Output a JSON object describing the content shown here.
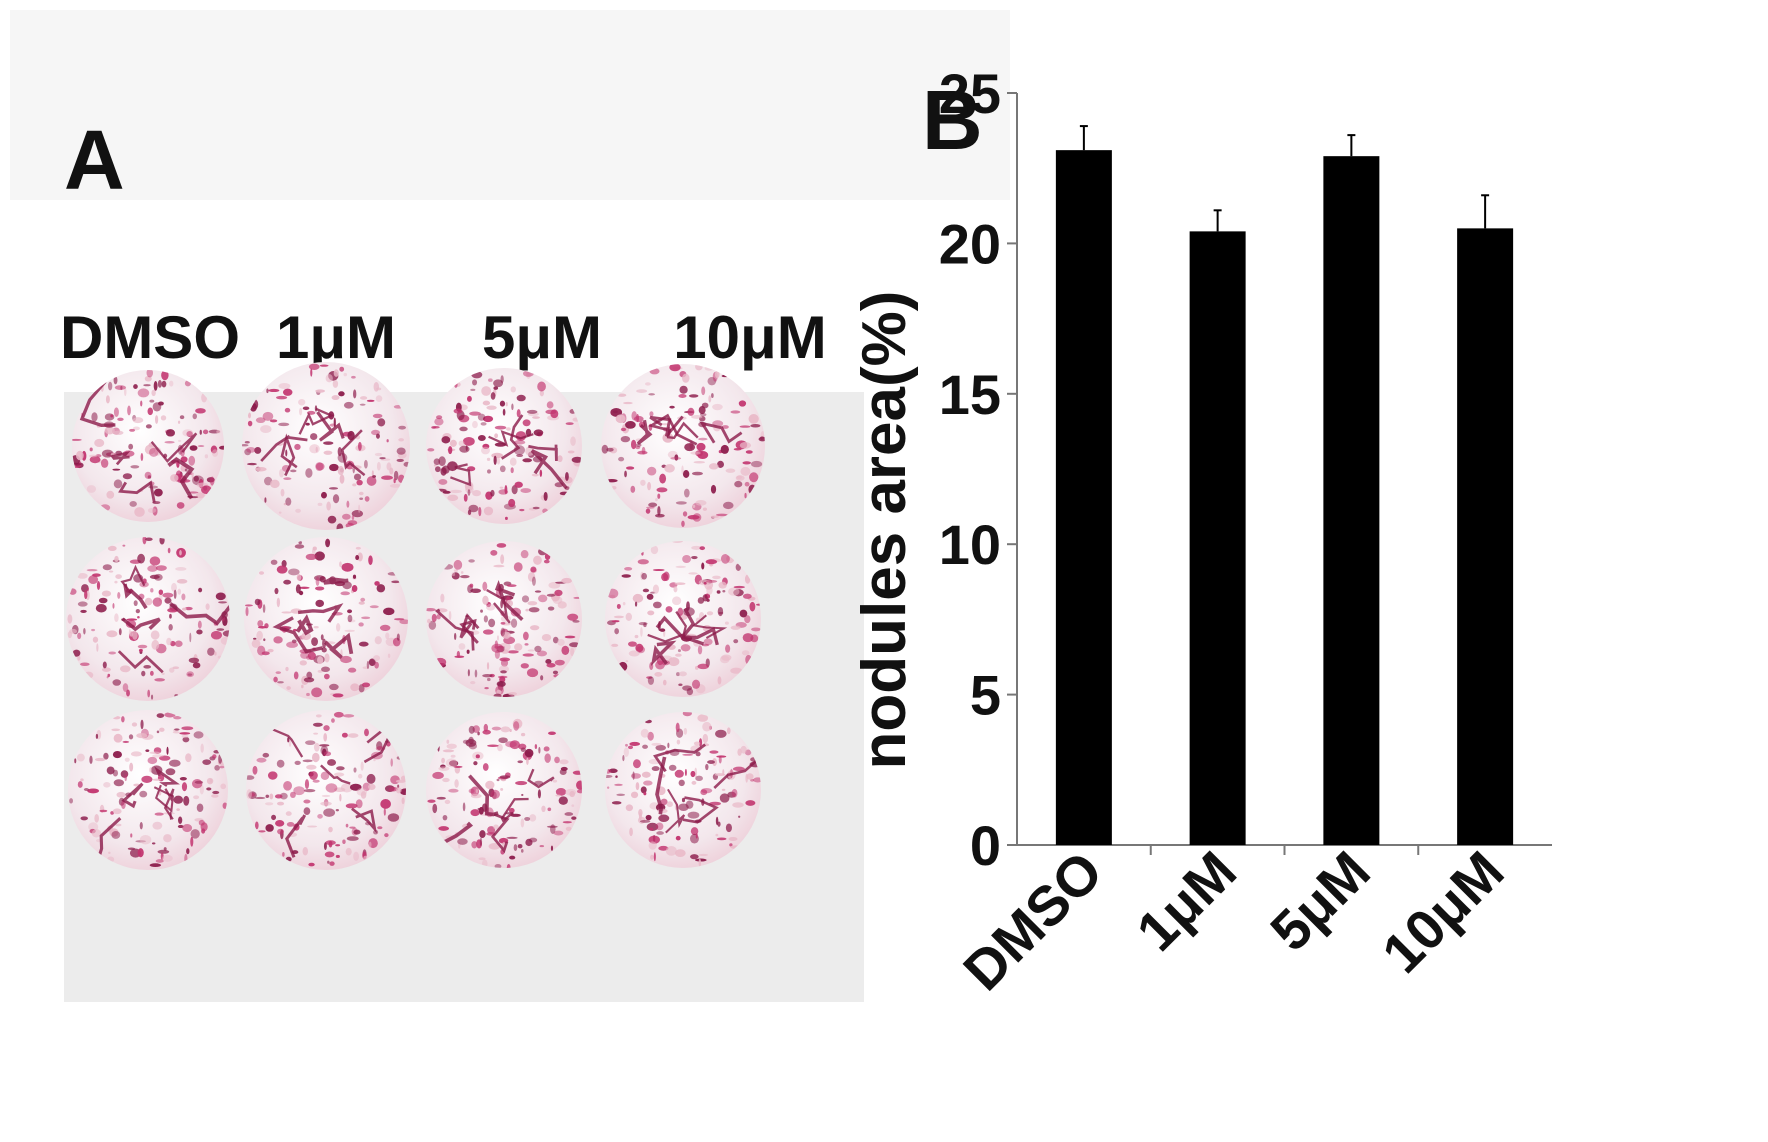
{
  "panel_a": {
    "letter": "A",
    "columns": [
      "DMSO",
      "1μM",
      "5μM",
      "10μM"
    ]
  },
  "panel_b": {
    "letter": "B"
  },
  "chart_data": {
    "type": "bar",
    "categories": [
      "DMSO",
      "1μM",
      "5μM",
      "10μM"
    ],
    "values": [
      23.1,
      20.4,
      22.9,
      20.5
    ],
    "errors": [
      0.8,
      0.7,
      0.7,
      1.1
    ],
    "title": "",
    "xlabel": "",
    "ylabel": "nodules area(%)",
    "ylim": [
      0,
      25
    ],
    "yticks": [
      0,
      5,
      10,
      15,
      20,
      25
    ],
    "grid": false,
    "bar_color": "#000000"
  },
  "colors": {
    "stain_dark": "#8c1a4a",
    "stain_mid": "#c2336e",
    "stain_light": "#e9b9c8",
    "well_base": "#f3e7ec"
  }
}
